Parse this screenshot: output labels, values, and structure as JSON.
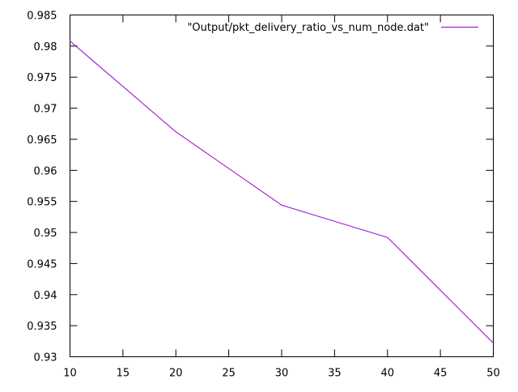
{
  "chart_data": {
    "type": "line",
    "title": "",
    "xlabel": "",
    "ylabel": "",
    "xlim": [
      10,
      50
    ],
    "ylim": [
      0.93,
      0.985
    ],
    "grid": false,
    "legend_position": "top-right",
    "x_ticks": [
      10,
      15,
      20,
      25,
      30,
      35,
      40,
      45,
      50
    ],
    "x_tick_labels": [
      "10",
      "15",
      "20",
      "25",
      "30",
      "35",
      "40",
      "45",
      "50"
    ],
    "y_ticks": [
      0.93,
      0.935,
      0.94,
      0.945,
      0.95,
      0.955,
      0.96,
      0.965,
      0.97,
      0.975,
      0.98,
      0.985
    ],
    "y_tick_labels": [
      "0.93",
      "0.935",
      "0.94",
      "0.945",
      "0.95",
      "0.955",
      "0.96",
      "0.965",
      "0.97",
      "0.975",
      "0.98",
      "0.985"
    ],
    "series": [
      {
        "name": "\"Output/pkt_delivery_ratio_vs_num_node.dat\"",
        "color": "#9400d3",
        "x": [
          10,
          20,
          30,
          40,
          50
        ],
        "y": [
          0.9808,
          0.9662,
          0.9544,
          0.9492,
          0.9322
        ]
      }
    ]
  }
}
